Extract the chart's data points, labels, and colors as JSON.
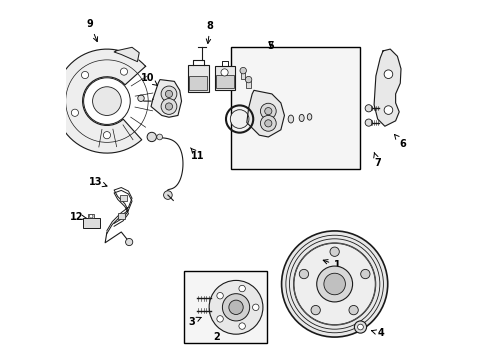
{
  "bg_color": "#ffffff",
  "fig_width": 4.9,
  "fig_height": 3.6,
  "dpi": 100,
  "line_color": "#1a1a1a",
  "light_fill": "#f0f0f0",
  "dot_fill": "#d8d8d8",
  "label_positions": {
    "1": [
      0.755,
      0.255,
      0.69,
      0.295
    ],
    "2": [
      0.415,
      0.035,
      0.415,
      0.055
    ],
    "3": [
      0.355,
      0.1,
      0.385,
      0.115
    ],
    "4": [
      0.875,
      0.07,
      0.845,
      0.085
    ],
    "5": [
      0.575,
      0.87,
      0.575,
      0.845
    ],
    "6": [
      0.915,
      0.59,
      0.895,
      0.615
    ],
    "7": [
      0.87,
      0.545,
      0.87,
      0.57
    ],
    "8": [
      0.405,
      0.93,
      0.405,
      0.905
    ],
    "9": [
      0.07,
      0.93,
      0.095,
      0.9
    ],
    "10": [
      0.235,
      0.78,
      0.27,
      0.76
    ],
    "11": [
      0.37,
      0.58,
      0.355,
      0.6
    ],
    "12": [
      0.04,
      0.39,
      0.065,
      0.4
    ],
    "13": [
      0.095,
      0.495,
      0.13,
      0.49
    ]
  }
}
